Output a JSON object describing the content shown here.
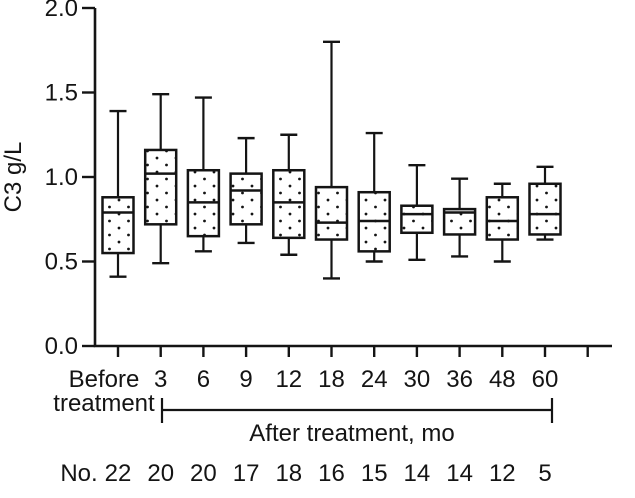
{
  "chart_data": {
    "type": "box",
    "title": "",
    "ylabel": "C3 g/L",
    "ylim": [
      0,
      2
    ],
    "yticks": [
      0,
      0.5,
      1,
      1.5,
      2
    ],
    "ytick_labels": [
      "0.0",
      "0.5",
      "1.0",
      "1.5",
      "2.0"
    ],
    "categories": [
      "Before treatment",
      "3",
      "6",
      "9",
      "12",
      "18",
      "24",
      "30",
      "36",
      "48",
      "60"
    ],
    "x_axis_annotation": "After treatment, mo",
    "counts_label": "No.",
    "counts": [
      "22",
      "20",
      "20",
      "17",
      "18",
      "16",
      "15",
      "14",
      "14",
      "12",
      "5"
    ],
    "grid": false,
    "legend": "none",
    "boxes": [
      {
        "category": "Before treatment",
        "min": 0.41,
        "q1": 0.55,
        "median": 0.79,
        "q3": 0.88,
        "max": 1.39
      },
      {
        "category": "3",
        "min": 0.49,
        "q1": 0.72,
        "median": 1.02,
        "q3": 1.16,
        "max": 1.49
      },
      {
        "category": "6",
        "min": 0.56,
        "q1": 0.65,
        "median": 0.85,
        "q3": 1.04,
        "max": 1.47
      },
      {
        "category": "9",
        "min": 0.61,
        "q1": 0.72,
        "median": 0.92,
        "q3": 1.02,
        "max": 1.23
      },
      {
        "category": "12",
        "min": 0.54,
        "q1": 0.64,
        "median": 0.85,
        "q3": 1.04,
        "max": 1.25
      },
      {
        "category": "18",
        "min": 0.4,
        "q1": 0.63,
        "median": 0.73,
        "q3": 0.94,
        "max": 1.8
      },
      {
        "category": "24",
        "min": 0.5,
        "q1": 0.56,
        "median": 0.74,
        "q3": 0.91,
        "max": 1.26
      },
      {
        "category": "30",
        "min": 0.51,
        "q1": 0.67,
        "median": 0.78,
        "q3": 0.83,
        "max": 1.07
      },
      {
        "category": "36",
        "min": 0.53,
        "q1": 0.66,
        "median": 0.79,
        "q3": 0.81,
        "max": 0.99
      },
      {
        "category": "48",
        "min": 0.5,
        "q1": 0.63,
        "median": 0.74,
        "q3": 0.88,
        "max": 0.96
      },
      {
        "category": "60",
        "min": 0.63,
        "q1": 0.66,
        "median": 0.78,
        "q3": 0.96,
        "max": 1.06
      }
    ],
    "style": {
      "line_color": "#141414",
      "box_fill": "#ffffff",
      "fill_pattern": "stipple-dots",
      "background": "#ffffff"
    }
  }
}
